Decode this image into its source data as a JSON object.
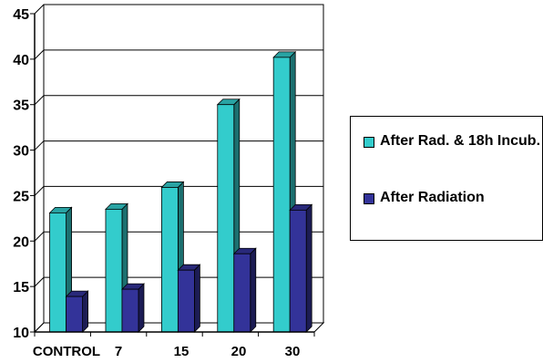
{
  "chart_data": {
    "type": "bar",
    "style": "3d-clustered",
    "categories": [
      "CONTROL",
      "7",
      "15",
      "20",
      "30"
    ],
    "series": [
      {
        "name": "After Rad. & 18h Incub.",
        "values": [
          23.1,
          23.5,
          25.9,
          35.0,
          40.2
        ],
        "color": "#33CCCC"
      },
      {
        "name": "After Radiation",
        "values": [
          13.9,
          14.7,
          16.8,
          18.6,
          23.4
        ],
        "color": "#333399"
      }
    ],
    "ylim": [
      10,
      45
    ],
    "yticks": [
      "10",
      "15",
      "20",
      "25",
      "30",
      "35",
      "40",
      "45"
    ],
    "grid": true,
    "legend_position": "right",
    "title": "",
    "xlabel": "",
    "ylabel": ""
  }
}
